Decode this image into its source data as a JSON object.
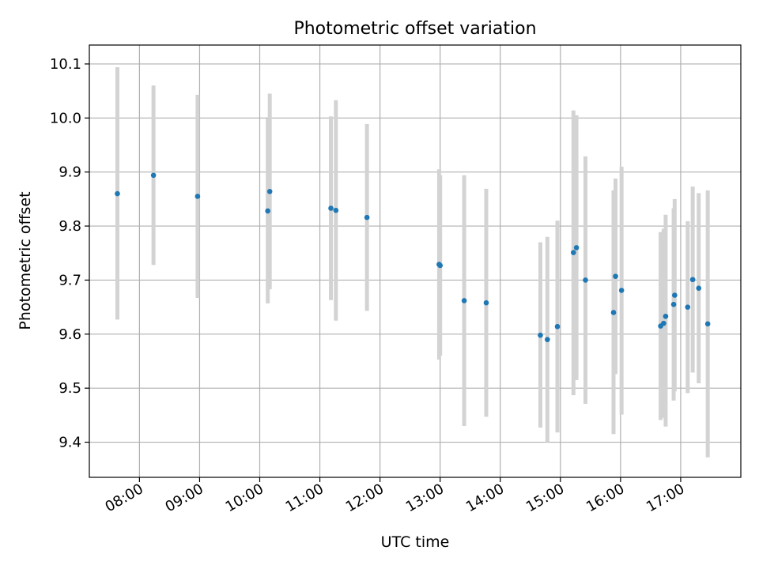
{
  "chart_data": {
    "type": "scatter",
    "title": "Photometric offset variation",
    "xlabel": "UTC time",
    "ylabel": "Photometric offset",
    "x_tick_labels": [
      "08:00",
      "09:00",
      "10:00",
      "11:00",
      "12:00",
      "13:00",
      "14:00",
      "15:00",
      "16:00",
      "17:00"
    ],
    "y_tick_labels": [
      "9.4",
      "9.5",
      "9.6",
      "9.7",
      "9.8",
      "9.9",
      "10.0",
      "10.1"
    ],
    "xlim": [
      "07:10",
      "18:00"
    ],
    "ylim": [
      9.335,
      10.135
    ],
    "grid": true,
    "colors": {
      "point": "#1f77b4",
      "errorbar": "#d3d3d3",
      "grid": "#b0b0b0"
    },
    "series": [
      {
        "points": [
          {
            "x": "07:38",
            "y": 9.86,
            "lower": 9.627,
            "upper": 10.094
          },
          {
            "x": "08:14",
            "y": 9.894,
            "lower": 9.728,
            "upper": 10.06
          },
          {
            "x": "08:58",
            "y": 9.855,
            "lower": 9.667,
            "upper": 10.043
          },
          {
            "x": "10:08",
            "y": 9.828,
            "lower": 9.657,
            "upper": 9.999
          },
          {
            "x": "10:10",
            "y": 9.864,
            "lower": 9.683,
            "upper": 10.045
          },
          {
            "x": "11:11",
            "y": 9.833,
            "lower": 9.663,
            "upper": 10.003
          },
          {
            "x": "11:16",
            "y": 9.829,
            "lower": 9.625,
            "upper": 10.033
          },
          {
            "x": "11:47",
            "y": 9.816,
            "lower": 9.643,
            "upper": 9.989
          },
          {
            "x": "12:59",
            "y": 9.729,
            "lower": 9.553,
            "upper": 9.905
          },
          {
            "x": "13:00",
            "y": 9.727,
            "lower": 9.56,
            "upper": 9.894
          },
          {
            "x": "13:24",
            "y": 9.662,
            "lower": 9.43,
            "upper": 9.894
          },
          {
            "x": "13:46",
            "y": 9.658,
            "lower": 9.447,
            "upper": 9.869
          },
          {
            "x": "14:40",
            "y": 9.598,
            "lower": 9.427,
            "upper": 9.77
          },
          {
            "x": "14:47",
            "y": 9.59,
            "lower": 9.4,
            "upper": 9.78
          },
          {
            "x": "14:57",
            "y": 9.614,
            "lower": 9.418,
            "upper": 9.81
          },
          {
            "x": "15:13",
            "y": 9.751,
            "lower": 9.487,
            "upper": 10.014
          },
          {
            "x": "15:16",
            "y": 9.76,
            "lower": 9.515,
            "upper": 10.005
          },
          {
            "x": "15:25",
            "y": 9.7,
            "lower": 9.471,
            "upper": 9.929
          },
          {
            "x": "15:53",
            "y": 9.64,
            "lower": 9.415,
            "upper": 9.866
          },
          {
            "x": "15:55",
            "y": 9.707,
            "lower": 9.526,
            "upper": 9.888
          },
          {
            "x": "16:01",
            "y": 9.681,
            "lower": 9.451,
            "upper": 9.91
          },
          {
            "x": "16:40",
            "y": 9.615,
            "lower": 9.441,
            "upper": 9.789
          },
          {
            "x": "16:43",
            "y": 9.62,
            "lower": 9.445,
            "upper": 9.795
          },
          {
            "x": "16:45",
            "y": 9.633,
            "lower": 9.429,
            "upper": 9.821
          },
          {
            "x": "16:53",
            "y": 9.655,
            "lower": 9.477,
            "upper": 9.833
          },
          {
            "x": "16:54",
            "y": 9.672,
            "lower": 9.494,
            "upper": 9.85
          },
          {
            "x": "17:07",
            "y": 9.65,
            "lower": 9.491,
            "upper": 9.809
          },
          {
            "x": "17:12",
            "y": 9.701,
            "lower": 9.529,
            "upper": 9.873
          },
          {
            "x": "17:18",
            "y": 9.685,
            "lower": 9.509,
            "upper": 9.861
          },
          {
            "x": "17:27",
            "y": 9.619,
            "lower": 9.372,
            "upper": 9.866
          }
        ]
      }
    ]
  }
}
